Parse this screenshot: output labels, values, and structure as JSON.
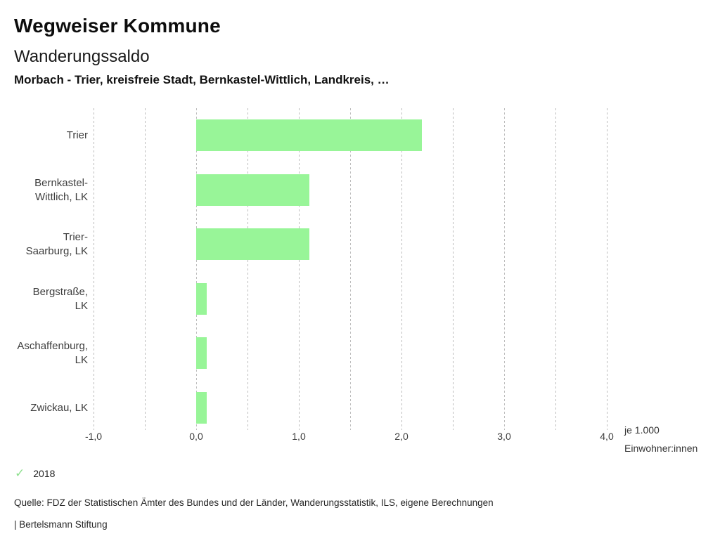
{
  "header": {
    "app_title": "Wegweiser Kommune",
    "indicator_title": "Wanderungssaldo",
    "selection_subtitle": "Morbach - Trier, kreisfreie Stadt, Bernkastel-Wittlich, Landkreis, …"
  },
  "chart_data": {
    "type": "bar",
    "orientation": "horizontal",
    "title": "Wanderungssaldo",
    "categories": [
      "Trier",
      "Bernkastel-Wittlich, LK",
      "Trier-Saarburg, LK",
      "Bergstraße, LK",
      "Aschaffenburg, LK",
      "Zwickau, LK"
    ],
    "series": [
      {
        "name": "2018",
        "values": [
          2.2,
          1.1,
          1.1,
          0.1,
          0.1,
          0.1
        ]
      }
    ],
    "xlabel": "je 1.000 Einwohner:innen",
    "xlabel_lines": [
      "je 1.000",
      "Einwohner:innen"
    ],
    "xlim": [
      -1.0,
      4.0
    ],
    "xticks": [
      {
        "value": -1.0,
        "label": "-1,0"
      },
      {
        "value": 0.0,
        "label": "0,0"
      },
      {
        "value": 1.0,
        "label": "1,0"
      },
      {
        "value": 2.0,
        "label": "2,0"
      },
      {
        "value": 3.0,
        "label": "3,0"
      },
      {
        "value": 4.0,
        "label": "4,0"
      }
    ],
    "gridline_step": 0.5,
    "grid": true,
    "legend_position": "bottom-left",
    "bar_color": "#98f598",
    "grid_color": "#bdbdbd"
  },
  "legend": {
    "check_icon": "✓",
    "check_color": "#8ee08e",
    "label": "2018"
  },
  "footer": {
    "source": "Quelle: FDZ der Statistischen Ämter des Bundes und der Länder, Wanderungsstatistik, ILS, eigene Berechnungen",
    "branding": "| Bertelsmann Stiftung"
  }
}
